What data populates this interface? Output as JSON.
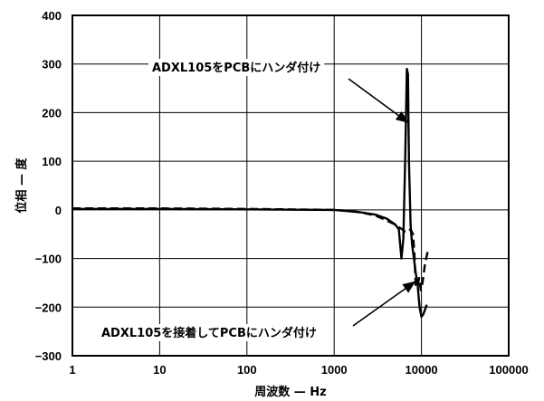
{
  "chart_data": {
    "type": "line",
    "xscale": "log",
    "xlim": [
      1,
      100000
    ],
    "ylim": [
      -300,
      400
    ],
    "grid": true,
    "xlabel": "周波数 — Hz",
    "ylabel": "位相 — 度",
    "x_ticks": [
      "1",
      "10",
      "100",
      "1000",
      "10000",
      "100000"
    ],
    "y_ticks": [
      "400",
      "300",
      "200",
      "100",
      "0",
      "−100",
      "−200",
      "−300"
    ],
    "series": [
      {
        "style": "solid",
        "x": [
          1,
          10,
          100,
          1000,
          2000,
          3000,
          4000,
          5000,
          5500,
          5900,
          6200,
          6500,
          6800,
          7000,
          7200,
          7500,
          7800,
          8200,
          8600,
          9000,
          9500,
          10000,
          10500,
          11000,
          11500
        ],
        "y": [
          2,
          2,
          1,
          0,
          -5,
          -10,
          -18,
          -30,
          -40,
          -100,
          -60,
          100,
          290,
          280,
          100,
          -30,
          -70,
          -100,
          -130,
          -150,
          -200,
          -220,
          -215,
          -205,
          -195
        ]
      },
      {
        "style": "dashed",
        "x": [
          1,
          10,
          100,
          1000,
          1500,
          2000,
          3000,
          4000,
          5000,
          6000,
          6500,
          7000,
          7500,
          8000,
          8300,
          8600,
          9000,
          9400,
          9800,
          10300,
          11000,
          12000
        ],
        "y": [
          3,
          3,
          2,
          0,
          -2,
          -5,
          -12,
          -22,
          -30,
          -40,
          -45,
          -45,
          -40,
          -50,
          -90,
          -155,
          -160,
          -140,
          -165,
          -150,
          -110,
          -80
        ]
      }
    ],
    "annotations": [
      {
        "text": "ADXL105をPCBにハンダ付け",
        "target_x": 7000,
        "target_y": 180
      },
      {
        "text": "ADXL105を接着してPCBにハンダ付け",
        "target_x": 8400,
        "target_y": -148
      }
    ]
  }
}
